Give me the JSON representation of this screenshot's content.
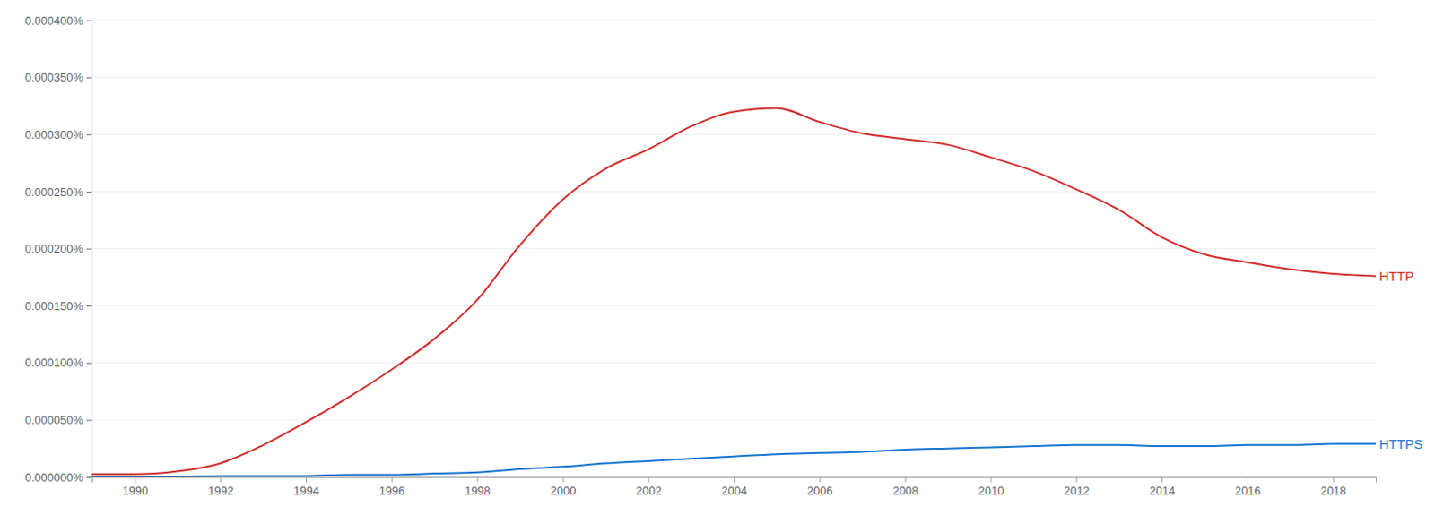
{
  "chart_data": {
    "type": "line",
    "x": [
      1989,
      1990,
      1991,
      1992,
      1993,
      1994,
      1995,
      1996,
      1997,
      1998,
      1999,
      2000,
      2001,
      2002,
      2003,
      2004,
      2005,
      2006,
      2007,
      2008,
      2009,
      2010,
      2011,
      2012,
      2013,
      2014,
      2015,
      2016,
      2017,
      2018,
      2019
    ],
    "series": [
      {
        "name": "HTTP",
        "color": "#d32f2f",
        "values": [
          2.5e-06,
          2.5e-06,
          5e-06,
          1.2e-05,
          2.8e-05,
          4.8e-05,
          7e-05,
          9.4e-05,
          0.000121,
          0.000155,
          0.000203,
          0.000243,
          0.00027,
          0.000287,
          0.000307,
          0.00032,
          0.000323,
          0.000311,
          0.000301,
          0.000296,
          0.000291,
          0.00028,
          0.000268,
          0.000252,
          0.000234,
          0.00021,
          0.000195,
          0.000188,
          0.000182,
          0.000178,
          0.000176
        ]
      },
      {
        "name": "HTTPS",
        "color": "#1976d2",
        "values": [
          0,
          0,
          0,
          1e-06,
          1e-06,
          1e-06,
          2e-06,
          2e-06,
          3e-06,
          4e-06,
          7e-06,
          9e-06,
          1.2e-05,
          1.4e-05,
          1.6e-05,
          1.8e-05,
          2e-05,
          2.1e-05,
          2.2e-05,
          2.4e-05,
          2.5e-05,
          2.6e-05,
          2.7e-05,
          2.8e-05,
          2.8e-05,
          2.7e-05,
          2.7e-05,
          2.8e-05,
          2.8e-05,
          2.9e-05,
          2.9e-05
        ]
      }
    ],
    "xlim": [
      1989,
      2019
    ],
    "xticks": [
      1990,
      1992,
      1994,
      1996,
      1998,
      2000,
      2002,
      2004,
      2006,
      2008,
      2010,
      2012,
      2014,
      2016,
      2018
    ],
    "ylim": [
      0,
      0.0004
    ],
    "yticks": [
      {
        "value": 0,
        "label": "0.000000%"
      },
      {
        "value": 5e-05,
        "label": "0.000050%"
      },
      {
        "value": 0.0001,
        "label": "0.000100%"
      },
      {
        "value": 0.00015,
        "label": "0.000150%"
      },
      {
        "value": 0.0002,
        "label": "0.000200%"
      },
      {
        "value": 0.00025,
        "label": "0.000250%"
      },
      {
        "value": 0.0003,
        "label": "0.000300%"
      },
      {
        "value": 0.00035,
        "label": "0.000350%"
      },
      {
        "value": 0.0004,
        "label": "0.000400%"
      }
    ],
    "grid": true
  }
}
